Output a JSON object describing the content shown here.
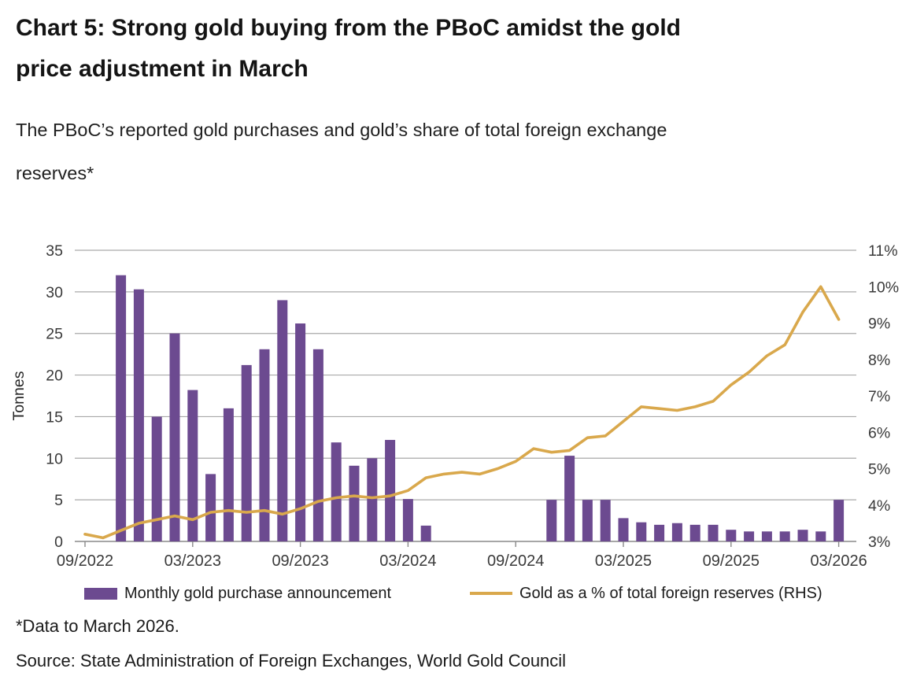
{
  "header": {
    "title_lines": [
      "Chart 5: Strong gold buying from the PBoC amidst the gold",
      "price adjustment in March"
    ],
    "subtitle_lines": [
      "The PBoC’s reported gold purchases and gold’s share of total foreign exchange",
      "reserves*"
    ]
  },
  "legend": {
    "bars_label": "Monthly gold purchase announcement",
    "line_label": "Gold as a % of total foreign reserves (RHS)"
  },
  "footer": {
    "footnote": "*Data to March 2026.",
    "source": "Source: State Administration of Foreign Exchanges, World Gold Council"
  },
  "colors": {
    "bar": "#6c4a90",
    "line": "#d9a84c",
    "grid": "#a9a9a9",
    "axis": "#8a8a8a",
    "tick_text": "#3a3a3a",
    "axis_title_text": "#262626"
  },
  "chart_data": {
    "type": "bar+line",
    "title": "Chart 5: Strong gold buying from the PBoC amidst the gold price adjustment in March",
    "subtitle": "The PBoC’s reported gold purchases and gold’s share of total foreign exchange reserves*",
    "categories": [
      "09/2022",
      "10/2022",
      "11/2022",
      "12/2022",
      "01/2023",
      "02/2023",
      "03/2023",
      "04/2023",
      "05/2023",
      "06/2023",
      "07/2023",
      "08/2023",
      "09/2023",
      "10/2023",
      "11/2023",
      "12/2023",
      "01/2024",
      "02/2024",
      "03/2024",
      "04/2024",
      "05/2024",
      "06/2024",
      "07/2024",
      "08/2024",
      "09/2024",
      "10/2024",
      "11/2024",
      "12/2024",
      "01/2025",
      "02/2025",
      "03/2025",
      "04/2025",
      "05/2025",
      "06/2025",
      "07/2025",
      "08/2025",
      "09/2025",
      "10/2025",
      "11/2025",
      "12/2025",
      "01/2026",
      "02/2026",
      "03/2026"
    ],
    "series": [
      {
        "name": "Monthly gold purchase announcement",
        "type": "bar",
        "axis": "left",
        "unit": "tonnes",
        "values": [
          null,
          null,
          32,
          30.3,
          15,
          25,
          18.2,
          8.1,
          16,
          21.2,
          23.1,
          29,
          26.2,
          23.1,
          11.9,
          9.1,
          10,
          12.2,
          5.1,
          1.9,
          null,
          null,
          null,
          null,
          null,
          null,
          5,
          10.3,
          5,
          5,
          2.8,
          2.3,
          2,
          2.2,
          2,
          2,
          1.4,
          1.2,
          1.2,
          1.2,
          1.4,
          1.2,
          5
        ]
      },
      {
        "name": "Gold as a % of total foreign reserves (RHS)",
        "type": "line",
        "axis": "right",
        "unit": "%",
        "values": [
          3.2,
          3.1,
          3.3,
          3.5,
          3.6,
          3.7,
          3.6,
          3.8,
          3.85,
          3.8,
          3.85,
          3.75,
          3.9,
          4.1,
          4.2,
          4.25,
          4.2,
          4.25,
          4.4,
          4.75,
          4.85,
          4.9,
          4.85,
          5.0,
          5.2,
          5.55,
          5.45,
          5.5,
          5.85,
          5.9,
          6.3,
          6.7,
          6.65,
          6.6,
          6.7,
          6.85,
          7.3,
          7.65,
          8.1,
          8.4,
          9.3,
          10.0,
          9.1
        ]
      }
    ],
    "left_axis": {
      "label": "Tonnes",
      "min": 0,
      "max": 35,
      "step": 5,
      "ticks": [
        "0",
        "5",
        "10",
        "15",
        "20",
        "25",
        "30",
        "35"
      ]
    },
    "right_axis": {
      "min": 3,
      "max": 11,
      "step": 1,
      "ticks": [
        "3%",
        "4%",
        "5%",
        "6%",
        "7%",
        "8%",
        "9%",
        "10%",
        "11%"
      ]
    },
    "x_tick_indices": [
      0,
      6,
      12,
      18,
      24,
      30,
      36,
      42
    ],
    "x_tick_labels": [
      "09/2022",
      "03/2023",
      "09/2023",
      "03/2024",
      "09/2024",
      "03/2025",
      "09/2025",
      "03/2026"
    ],
    "grid": "horizontal",
    "legend_position": "bottom"
  }
}
